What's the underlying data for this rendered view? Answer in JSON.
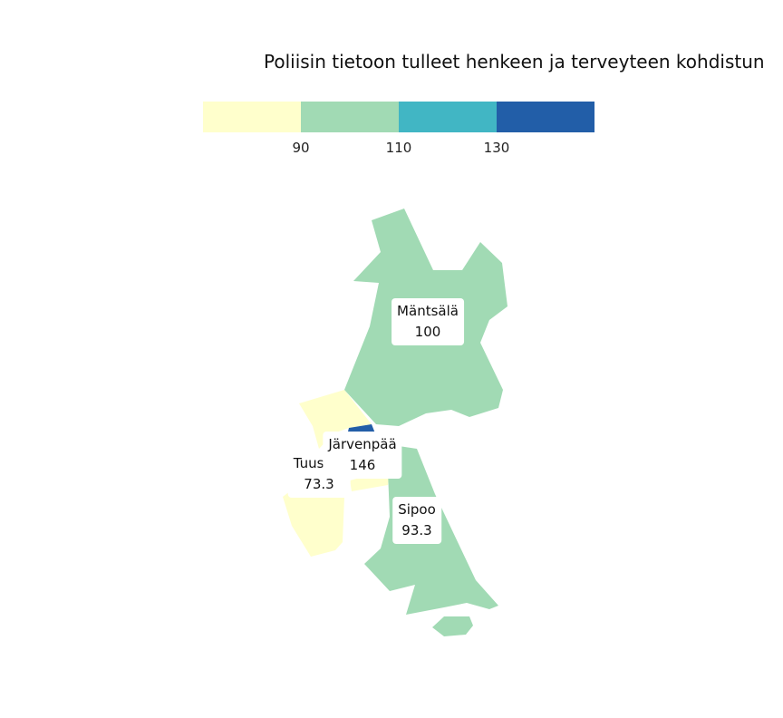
{
  "title": "Poliisin tietoon tulleet henkeen ja terveyteen kohdistun",
  "legend": {
    "bins": [
      {
        "color": "#ffffcc"
      },
      {
        "color": "#a1dab4"
      },
      {
        "color": "#41b6c4"
      },
      {
        "color": "#225ea8"
      }
    ],
    "breaks": [
      "90",
      "110",
      "130"
    ]
  },
  "regions": [
    {
      "name": "Mäntsälä",
      "value": "100",
      "color": "#a1dab4"
    },
    {
      "name": "Järvenpää",
      "value": "146",
      "color": "#225ea8"
    },
    {
      "name": "Tuusula",
      "value": "73.3",
      "color": "#ffffcc"
    },
    {
      "name": "Sipoo",
      "value": "93.3",
      "color": "#a1dab4"
    }
  ]
}
